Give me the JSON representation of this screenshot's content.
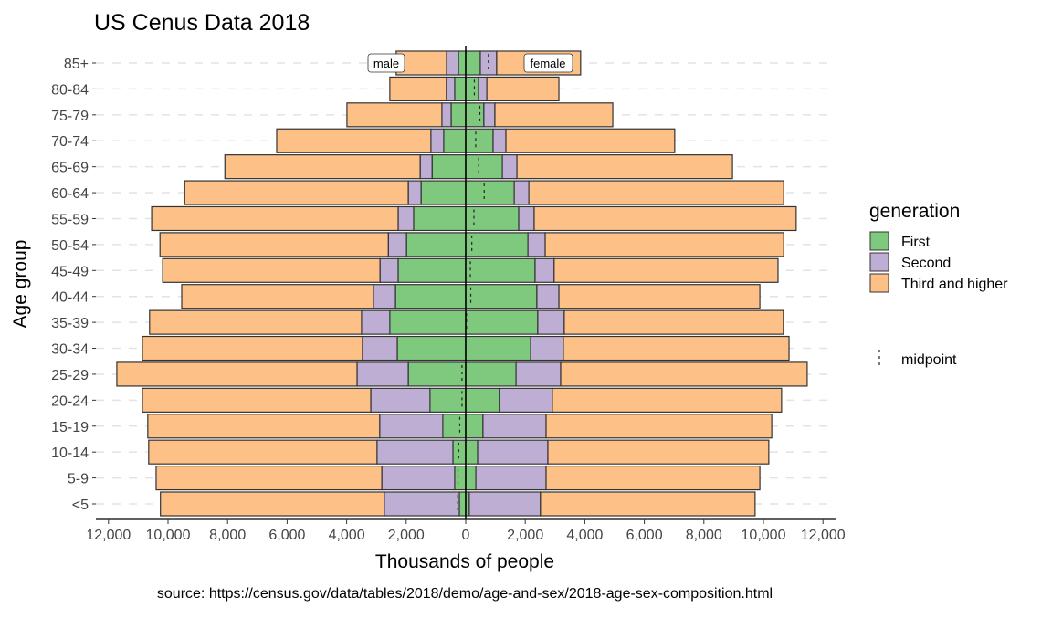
{
  "chart_data": {
    "type": "bar",
    "orientation": "horizontal-diverging",
    "stacked": true,
    "title": "US Cenus Data 2018",
    "xlabel": "Thousands of people",
    "ylabel": "Age group",
    "caption": "source: https://census.gov/data/tables/2018/demo/age-and-sex/2018-age-sex-composition.html",
    "xlim": [
      -12000,
      12000
    ],
    "xticks": [
      -12000,
      -10000,
      -8000,
      -6000,
      -4000,
      -2000,
      0,
      2000,
      4000,
      6000,
      8000,
      10000,
      12000
    ],
    "xtick_labels": [
      "12,000",
      "10,000",
      "8,000",
      "6,000",
      "4,000",
      "2,000",
      "0",
      "2,000",
      "4,000",
      "6,000",
      "8,000",
      "10,000",
      "12,000"
    ],
    "grid": "horizontal dashed",
    "categories": [
      "<5",
      "5-9",
      "10-14",
      "15-19",
      "20-24",
      "25-29",
      "30-34",
      "35-39",
      "40-44",
      "45-49",
      "50-54",
      "55-59",
      "60-64",
      "65-69",
      "70-74",
      "75-79",
      "80-84",
      "85+"
    ],
    "side_labels": {
      "male": "male",
      "female": "female"
    },
    "legend": {
      "title": "generation",
      "placement": "right",
      "midpoint_label": "midpoint"
    },
    "series": [
      {
        "name": "First",
        "color": "#7FC97F",
        "male": [
          215,
          370,
          430,
          770,
          1200,
          1930,
          2300,
          2550,
          2360,
          2270,
          1990,
          1750,
          1500,
          1130,
          740,
          490,
          370,
          245
        ],
        "female": [
          120,
          340,
          400,
          580,
          1130,
          1690,
          2180,
          2420,
          2390,
          2330,
          2090,
          1780,
          1630,
          1230,
          920,
          610,
          430,
          490
        ]
      },
      {
        "name": "Second",
        "color": "#BEAED4",
        "male": [
          2520,
          2450,
          2550,
          2120,
          1990,
          1720,
          1170,
          950,
          740,
          610,
          610,
          520,
          430,
          400,
          430,
          310,
          280,
          400
        ],
        "female": [
          2390,
          2360,
          2360,
          2120,
          1780,
          1500,
          1100,
          890,
          740,
          640,
          580,
          520,
          490,
          490,
          430,
          370,
          280,
          550
        ]
      },
      {
        "name": "Third and higher",
        "color": "#FDC086",
        "male": [
          7520,
          7580,
          7670,
          7790,
          7670,
          8070,
          7390,
          7120,
          6440,
          7300,
          7670,
          8280,
          7510,
          6560,
          5180,
          3190,
          1900,
          1690
        ],
        "female": [
          7210,
          7180,
          7420,
          7580,
          7700,
          8280,
          7580,
          7360,
          6750,
          7520,
          8010,
          8800,
          8560,
          7240,
          5670,
          3960,
          2420,
          2820
        ]
      }
    ]
  }
}
